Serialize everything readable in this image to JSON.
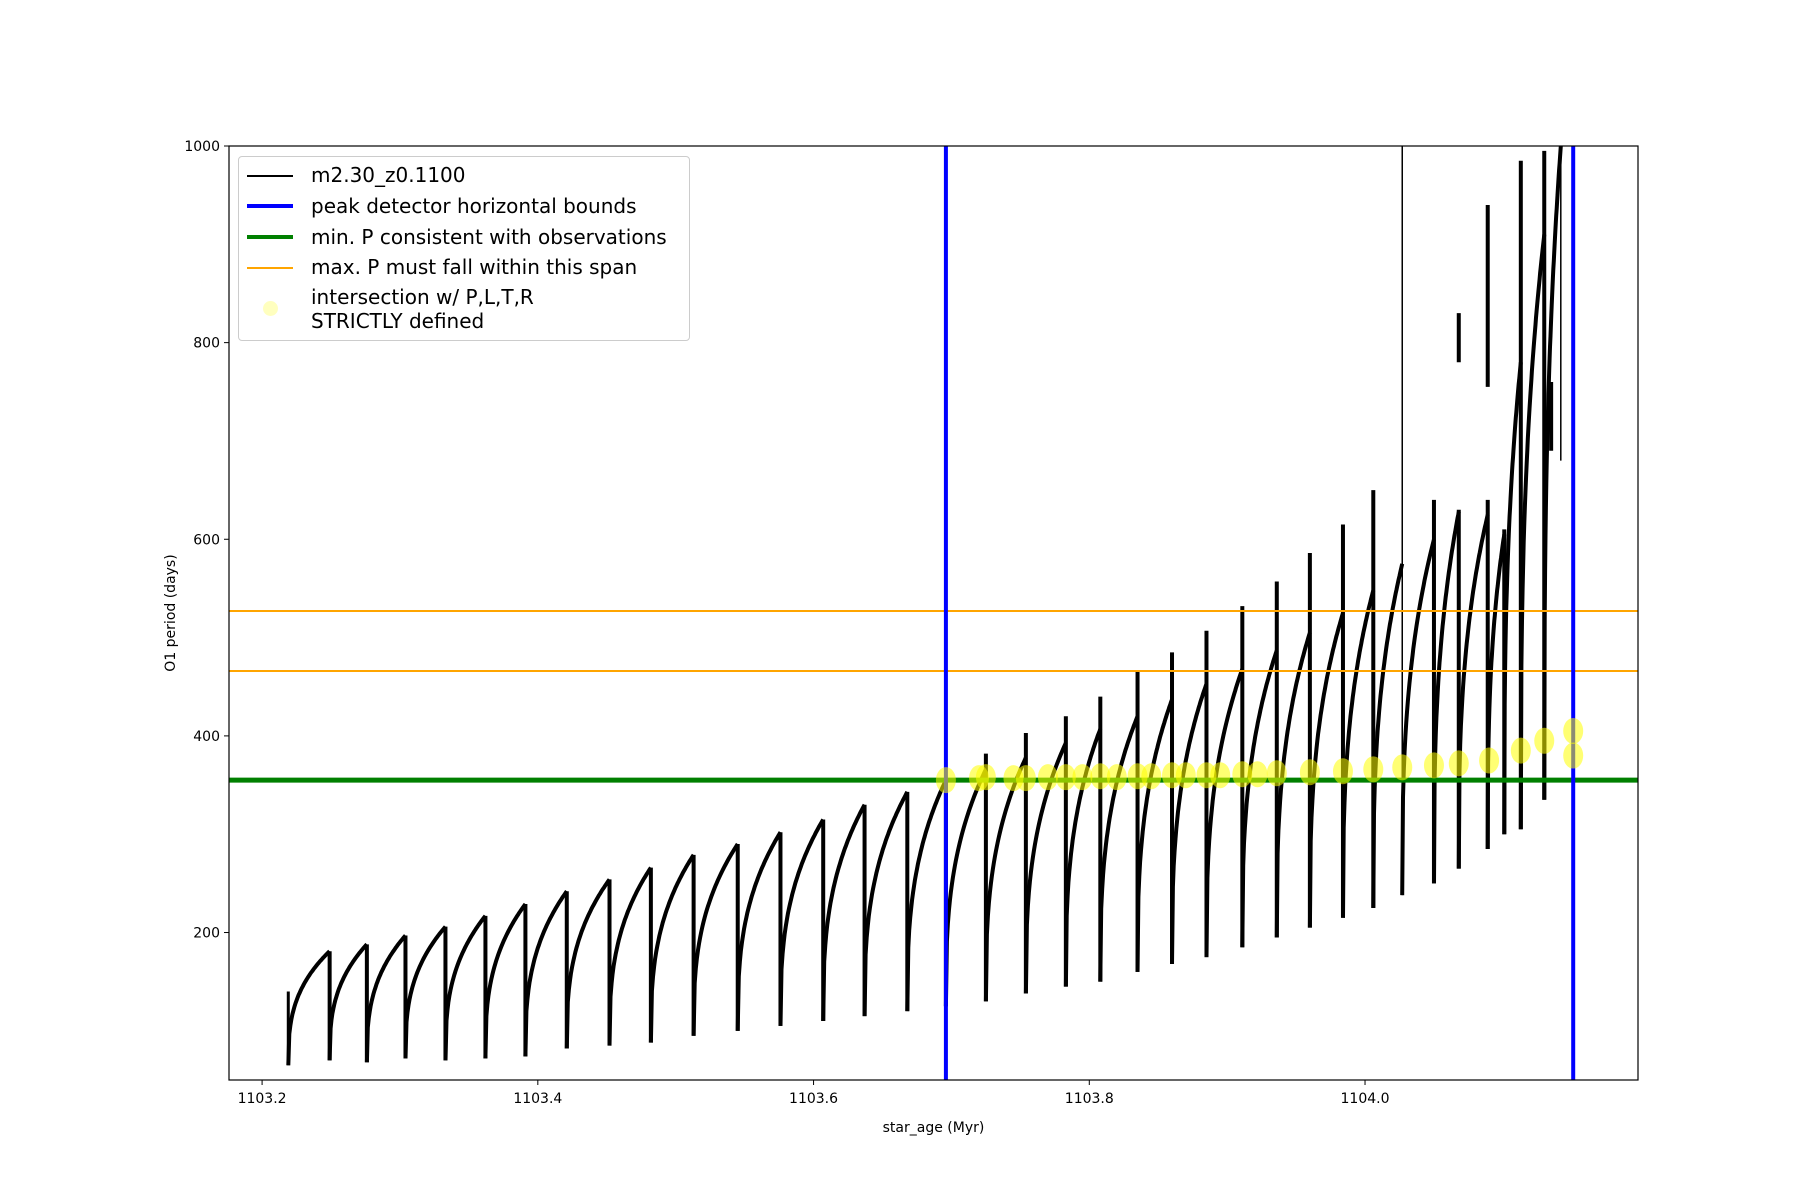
{
  "chart_data": {
    "type": "line",
    "xlabel": "star_age (Myr)",
    "ylabel": "O1 period (days)",
    "xlim": [
      1103.176,
      1104.198
    ],
    "ylim": [
      50,
      1000
    ],
    "xticks": [
      "1103.2",
      "1103.4",
      "1103.6",
      "1103.8",
      "1104.0"
    ],
    "xtick_values": [
      1103.2,
      1103.4,
      1103.6,
      1103.8,
      1104.0
    ],
    "yticks": [
      "200",
      "400",
      "600",
      "800",
      "1000"
    ],
    "ytick_values": [
      200,
      400,
      600,
      800,
      1000
    ],
    "grid": false,
    "legend_placement": "upper-left",
    "series": [
      {
        "name": "m2.30_z0.1100",
        "color": "#000000",
        "start": {
          "age": 1103.219,
          "P": 140,
          "min": 65
        },
        "pulses_age_peak_min_spike": [
          [
            1103.249,
            181,
            70,
            181
          ],
          [
            1103.276,
            188,
            68,
            188
          ],
          [
            1103.304,
            197,
            72,
            197
          ],
          [
            1103.333,
            206,
            70,
            206
          ],
          [
            1103.362,
            217,
            72,
            217
          ],
          [
            1103.391,
            229,
            74,
            229
          ],
          [
            1103.421,
            242,
            82,
            242
          ],
          [
            1103.452,
            254,
            85,
            254
          ],
          [
            1103.482,
            266,
            88,
            266
          ],
          [
            1103.513,
            279,
            95,
            279
          ],
          [
            1103.545,
            290,
            100,
            290
          ],
          [
            1103.576,
            302,
            105,
            302
          ],
          [
            1103.607,
            315,
            110,
            315
          ],
          [
            1103.637,
            330,
            115,
            330
          ],
          [
            1103.668,
            343,
            120,
            343
          ],
          [
            1103.696,
            355,
            125,
            355
          ],
          [
            1103.725,
            366,
            130,
            382
          ],
          [
            1103.754,
            378,
            138,
            403
          ],
          [
            1103.783,
            393,
            145,
            420
          ],
          [
            1103.808,
            407,
            150,
            440
          ],
          [
            1103.835,
            420,
            160,
            465
          ],
          [
            1103.86,
            437,
            168,
            485
          ],
          [
            1103.885,
            453,
            175,
            507
          ],
          [
            1103.911,
            468,
            185,
            532
          ],
          [
            1103.936,
            487,
            195,
            557
          ],
          [
            1103.96,
            505,
            205,
            586
          ],
          [
            1103.984,
            525,
            215,
            615
          ],
          [
            1104.006,
            548,
            225,
            650
          ],
          [
            1104.027,
            575,
            238,
            1000
          ],
          [
            1104.05,
            600,
            250,
            640
          ],
          [
            1104.068,
            628,
            265,
            630
          ],
          [
            1104.089,
            625,
            285,
            640
          ],
          [
            1104.101,
            605,
            300,
            610
          ],
          [
            1104.113,
            780,
            305,
            985
          ],
          [
            1104.13,
            910,
            335,
            995
          ],
          [
            1104.142,
            1000,
            680,
            1000
          ]
        ],
        "isolated_segments_age_Pmin_Pmax": [
          [
            1104.068,
            780,
            830
          ],
          [
            1104.089,
            755,
            940
          ],
          [
            1104.135,
            690,
            760
          ]
        ]
      },
      {
        "name": "peak detector horizontal bounds",
        "color": "#0000ff",
        "type": "vline",
        "x": [
          1103.696,
          1104.151
        ]
      },
      {
        "name": "min. P consistent with observations",
        "color": "#008000",
        "type": "hline",
        "y": [
          355
        ]
      },
      {
        "name": "max. P must fall within this span",
        "color": "#ffa500",
        "type": "hline",
        "y": [
          466,
          527
        ]
      },
      {
        "name": "intersection w/ P,L,T,R\nSTRICTLY defined",
        "color": "#ffff00",
        "type": "scatter",
        "points": [
          [
            1103.696,
            355
          ],
          [
            1103.72,
            357
          ],
          [
            1103.725,
            358
          ],
          [
            1103.745,
            357
          ],
          [
            1103.754,
            357
          ],
          [
            1103.77,
            358
          ],
          [
            1103.783,
            358
          ],
          [
            1103.795,
            358
          ],
          [
            1103.808,
            359
          ],
          [
            1103.82,
            358
          ],
          [
            1103.835,
            359
          ],
          [
            1103.845,
            359
          ],
          [
            1103.86,
            360
          ],
          [
            1103.87,
            360
          ],
          [
            1103.885,
            360
          ],
          [
            1103.895,
            360
          ],
          [
            1103.911,
            361
          ],
          [
            1103.922,
            361
          ],
          [
            1103.936,
            362
          ],
          [
            1103.96,
            363
          ],
          [
            1103.984,
            364
          ],
          [
            1104.006,
            366
          ],
          [
            1104.027,
            368
          ],
          [
            1104.05,
            370
          ],
          [
            1104.068,
            372
          ],
          [
            1104.09,
            375
          ],
          [
            1104.113,
            385
          ],
          [
            1104.13,
            395
          ],
          [
            1104.151,
            405
          ],
          [
            1104.151,
            380
          ]
        ]
      }
    ]
  }
}
